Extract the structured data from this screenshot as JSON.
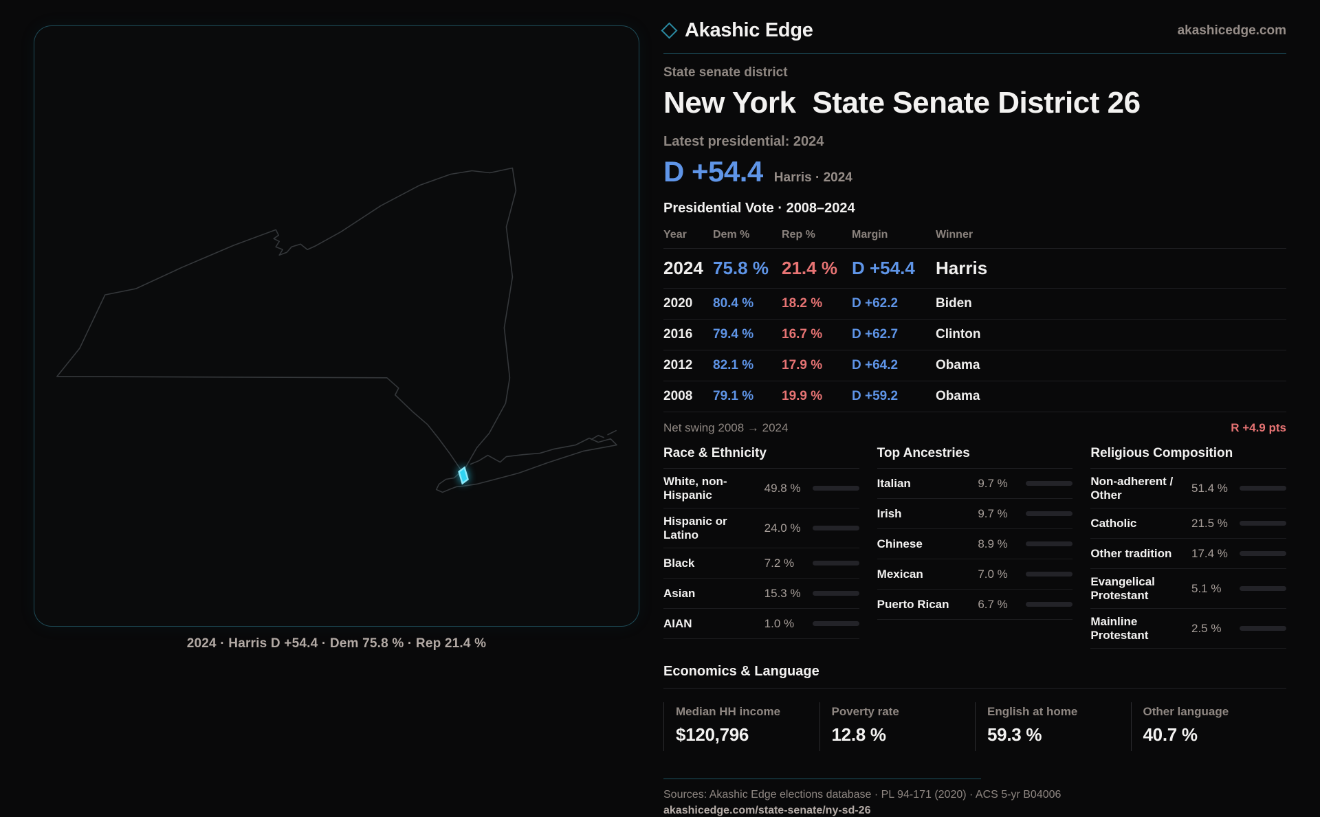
{
  "brand": {
    "name": "Akashic Edge",
    "site": "akashicedge.com"
  },
  "district": {
    "eyebrow": "State senate district",
    "region": "New York",
    "title": "State Senate District 26"
  },
  "latest": {
    "label": "Latest presidential: 2024",
    "margin": "D +54.4",
    "detail": "Harris · 2024"
  },
  "vote_table": {
    "title": "Presidential Vote · 2008–2024",
    "columns": [
      "Year",
      "Dem %",
      "Rep %",
      "Margin",
      "Winner"
    ],
    "rows": [
      {
        "year": "2024",
        "dem": "75.8 %",
        "rep": "21.4 %",
        "margin": "D +54.4",
        "winner": "Harris",
        "emphasis": true
      },
      {
        "year": "2020",
        "dem": "80.4 %",
        "rep": "18.2 %",
        "margin": "D +62.2",
        "winner": "Biden",
        "emphasis": false
      },
      {
        "year": "2016",
        "dem": "79.4 %",
        "rep": "16.7 %",
        "margin": "D +62.7",
        "winner": "Clinton",
        "emphasis": false
      },
      {
        "year": "2012",
        "dem": "82.1 %",
        "rep": "17.9 %",
        "margin": "D +64.2",
        "winner": "Obama",
        "emphasis": false
      },
      {
        "year": "2008",
        "dem": "79.1 %",
        "rep": "19.9 %",
        "margin": "D +59.2",
        "winner": "Obama",
        "emphasis": false
      }
    ],
    "net_swing_label": "Net swing 2008 → 2024",
    "net_swing_value": "R +4.9 pts"
  },
  "demographics": {
    "sections": [
      {
        "title": "Race & Ethnicity",
        "rows": [
          {
            "label": "White, non-Hispanic",
            "value": "49.8 %",
            "pct": 49.8,
            "color": "#93a9c9"
          },
          {
            "label": "Hispanic or Latino",
            "value": "24.0 %",
            "pct": 24.0,
            "color": "#e3a23e"
          },
          {
            "label": "Black",
            "value": "7.2 %",
            "pct": 7.2,
            "color": "#8677f0"
          },
          {
            "label": "Asian",
            "value": "15.3 %",
            "pct": 15.3,
            "color": "#2fc493"
          },
          {
            "label": "AIAN",
            "value": "1.0 %",
            "pct": 1.0,
            "color": "#b05a26"
          }
        ]
      },
      {
        "title": "Top Ancestries",
        "rows": [
          {
            "label": "Italian",
            "value": "9.7 %",
            "pct": 9.7,
            "color": "#8fa6c4"
          },
          {
            "label": "Irish",
            "value": "9.7 %",
            "pct": 9.7,
            "color": "#8fa6c4"
          },
          {
            "label": "Chinese",
            "value": "8.9 %",
            "pct": 8.9,
            "color": "#2fc493"
          },
          {
            "label": "Mexican",
            "value": "7.0 %",
            "pct": 7.0,
            "color": "#e3a23e"
          },
          {
            "label": "Puerto Rican",
            "value": "6.7 %",
            "pct": 6.7,
            "color": "#e3a23e"
          }
        ]
      },
      {
        "title": "Religious Composition",
        "rows": [
          {
            "label": "Non-adherent / Other",
            "value": "51.4 %",
            "pct": 51.4,
            "color": "#8391a6"
          },
          {
            "label": "Catholic",
            "value": "21.5 %",
            "pct": 21.5,
            "color": "#e3b53e"
          },
          {
            "label": "Other tradition",
            "value": "17.4 %",
            "pct": 17.4,
            "color": "#8391a6"
          },
          {
            "label": "Evangelical Protestant",
            "value": "5.1 %",
            "pct": 5.1,
            "color": "#e06565"
          },
          {
            "label": "Mainline Protestant",
            "value": "2.5 %",
            "pct": 2.5,
            "color": "#4a8fe0"
          }
        ]
      }
    ]
  },
  "economics": {
    "title": "Economics & Language",
    "stats": [
      {
        "label": "Median HH income",
        "value": "$120,796"
      },
      {
        "label": "Poverty rate",
        "value": "12.8 %"
      },
      {
        "label": "English at home",
        "value": "59.3 %"
      },
      {
        "label": "Other language",
        "value": "40.7 %"
      }
    ]
  },
  "map": {
    "caption": "2024 · Harris D +54.4 · Dem 75.8 % · Rep 21.4 %",
    "outline_color": "#35383b",
    "highlight_color": "#2fd4f2"
  },
  "footer": {
    "sources": "Sources: Akashic Edge elections database · PL 94-171 (2020) · ACS 5-yr B04006",
    "url": "akashicedge.com/state-senate/ny-sd-26"
  }
}
